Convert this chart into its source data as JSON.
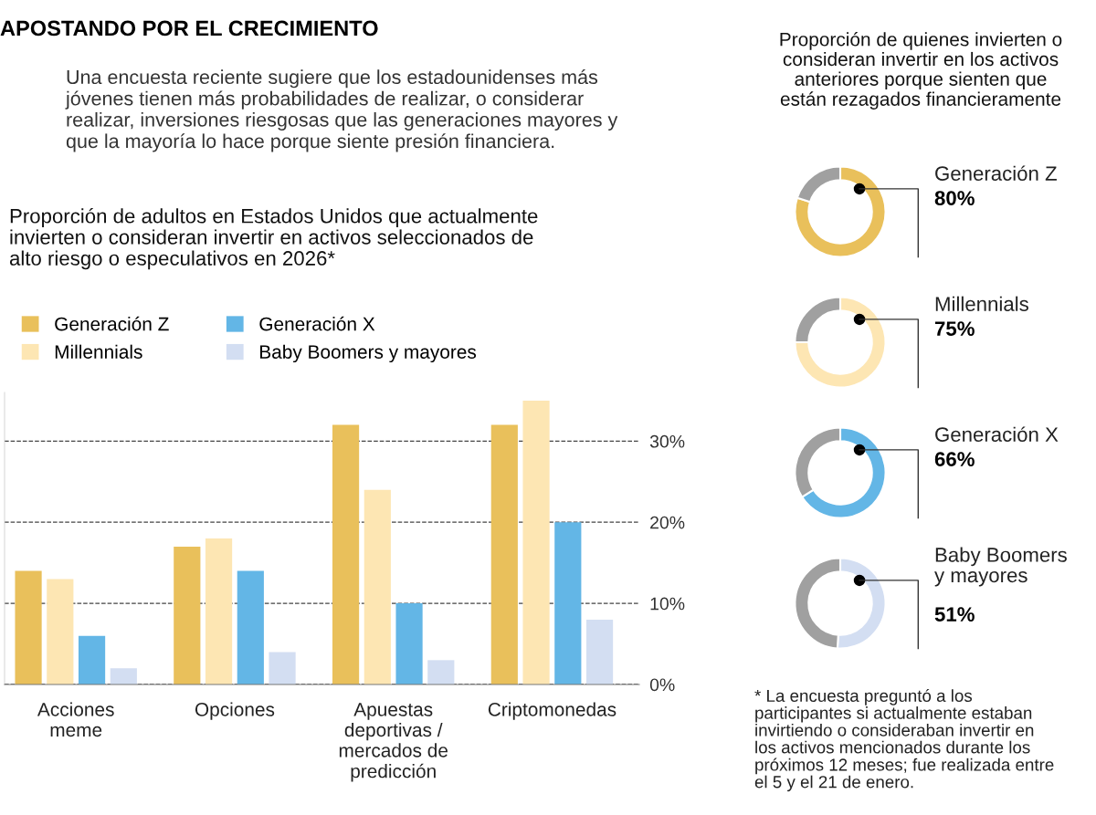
{
  "chart_data": [
    {
      "type": "other",
      "title": "APOSTANDO POR EL CRECIMIENTO",
      "annotations": [
        "Una encuesta reciente sugiere que los estadounidenses más\njóvenes tienen más probabilidades de realizar, o considerar\nrealizar, inversiones riesgosas que las generaciones mayores y\nque la mayoría lo hace porque siente presión financiera."
      ]
    },
    {
      "type": "bar",
      "title": "Proporción de adultos en Estados Unidos que actualmente\ninvierten o consideran invertir en activos seleccionados de\nalto riesgo o especulativos en 2026*",
      "categories": [
        "Acciones\nmeme",
        "Opciones",
        "Apuestas\ndeportivas /\nmercados de\npredicción",
        "Criptomonedas"
      ],
      "series": [
        {
          "name": "Generación Z",
          "color": "#e9c05b",
          "values": [
            14,
            17,
            32,
            32
          ]
        },
        {
          "name": "Millennials",
          "color": "#fde6b3",
          "values": [
            13,
            18,
            24,
            35
          ]
        },
        {
          "name": "Generación X",
          "color": "#63b6e6",
          "values": [
            6,
            14,
            10,
            20
          ]
        },
        {
          "name": "Baby Boomers y mayores",
          "color": "#d3def2",
          "values": [
            2,
            4,
            3,
            8
          ]
        }
      ],
      "ylim": [
        0,
        36
      ],
      "yticks": [
        {
          "value": 0,
          "label": "0%"
        },
        {
          "value": 10,
          "label": "10%"
        },
        {
          "value": 20,
          "label": "20%"
        },
        {
          "value": 30,
          "label": "30%"
        }
      ],
      "grid": "y",
      "legend": "top left"
    },
    {
      "type": "donut",
      "title": "Proporción de quienes invierten o\nconsideran invertir en los activos\nanteriores porque sienten que\nestán rezagados financieramente",
      "categories": [
        "Generación Z",
        null
      ],
      "values": [
        80,
        20
      ],
      "colors": [
        "#e9c05b",
        "#a0a0a0"
      ],
      "value_labels": [
        "80%",
        null
      ]
    },
    {
      "type": "donut",
      "categories": [
        "Millennials",
        null
      ],
      "values": [
        75,
        25
      ],
      "colors": [
        "#fde6b3",
        "#a0a0a0"
      ],
      "value_labels": [
        "75%",
        null
      ]
    },
    {
      "type": "donut",
      "categories": [
        "Generación X",
        null
      ],
      "values": [
        66,
        34
      ],
      "colors": [
        "#63b6e6",
        "#a0a0a0"
      ],
      "value_labels": [
        "66%",
        null
      ]
    },
    {
      "type": "donut",
      "categories": [
        "Baby Boomers\ny mayores",
        null
      ],
      "values": [
        51,
        49
      ],
      "colors": [
        "#d3def2",
        "#a0a0a0"
      ],
      "value_labels": [
        "51%",
        null
      ],
      "annotations": [
        "* La encuesta preguntó a los\nparticipantes si actualmente estaban\ninvirtiendo o consideraban invertir en\nlos activos mencionados durante los\npróximos 12 meses; fue realizada entre\nel 5 y el 21 de enero."
      ]
    }
  ]
}
